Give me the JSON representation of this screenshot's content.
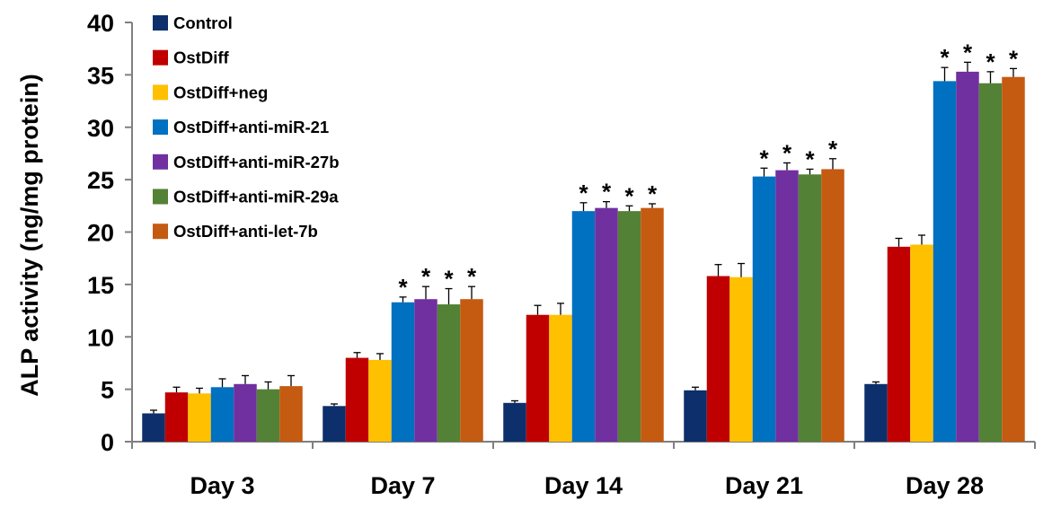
{
  "chart_data": {
    "type": "bar",
    "title": "",
    "xlabel": "",
    "ylabel": "ALP activity (ng/mg protein)",
    "ylim": [
      0,
      40
    ],
    "yticks": [
      0,
      5,
      10,
      15,
      20,
      25,
      30,
      35,
      40
    ],
    "categories": [
      "Day 3",
      "Day 7",
      "Day 14",
      "Day 21",
      "Day 28"
    ],
    "legend_position": "top-left",
    "significance_marker": "*",
    "series": [
      {
        "name": "Control",
        "color": "#0d2f6b",
        "values": [
          2.7,
          3.4,
          3.7,
          4.9,
          5.5
        ],
        "errors": [
          0.3,
          0.2,
          0.2,
          0.3,
          0.2
        ],
        "significant": [
          false,
          false,
          false,
          false,
          false
        ]
      },
      {
        "name": "OstDiff",
        "color": "#c00000",
        "values": [
          4.7,
          8.0,
          12.1,
          15.8,
          18.6
        ],
        "errors": [
          0.5,
          0.5,
          0.9,
          1.1,
          0.8
        ],
        "significant": [
          false,
          false,
          false,
          false,
          false
        ]
      },
      {
        "name": "OstDiff+neg",
        "color": "#ffc000",
        "values": [
          4.6,
          7.8,
          12.1,
          15.7,
          18.8
        ],
        "errors": [
          0.5,
          0.6,
          1.1,
          1.3,
          0.9
        ],
        "significant": [
          false,
          false,
          false,
          false,
          false
        ]
      },
      {
        "name": "OstDiff+anti-miR-21",
        "color": "#0070c0",
        "values": [
          5.2,
          13.3,
          22.0,
          25.3,
          34.4
        ],
        "errors": [
          0.8,
          0.5,
          0.8,
          0.8,
          1.3
        ],
        "significant": [
          false,
          true,
          true,
          true,
          true
        ]
      },
      {
        "name": "OstDiff+anti-miR-27b",
        "color": "#7030a0",
        "values": [
          5.5,
          13.6,
          22.3,
          25.9,
          35.3
        ],
        "errors": [
          0.8,
          1.2,
          0.6,
          0.7,
          0.9
        ],
        "significant": [
          false,
          true,
          true,
          true,
          true
        ]
      },
      {
        "name": "OstDiff+anti-miR-29a",
        "color": "#538135",
        "values": [
          5.0,
          13.1,
          22.0,
          25.5,
          34.2
        ],
        "errors": [
          0.7,
          1.5,
          0.5,
          0.5,
          1.1
        ],
        "significant": [
          false,
          true,
          true,
          true,
          true
        ]
      },
      {
        "name": "OstDiff+anti-let-7b",
        "color": "#c55a11",
        "values": [
          5.3,
          13.6,
          22.3,
          26.0,
          34.8
        ],
        "errors": [
          1.0,
          1.2,
          0.4,
          1.0,
          0.8
        ],
        "significant": [
          false,
          true,
          true,
          true,
          true
        ]
      }
    ]
  }
}
